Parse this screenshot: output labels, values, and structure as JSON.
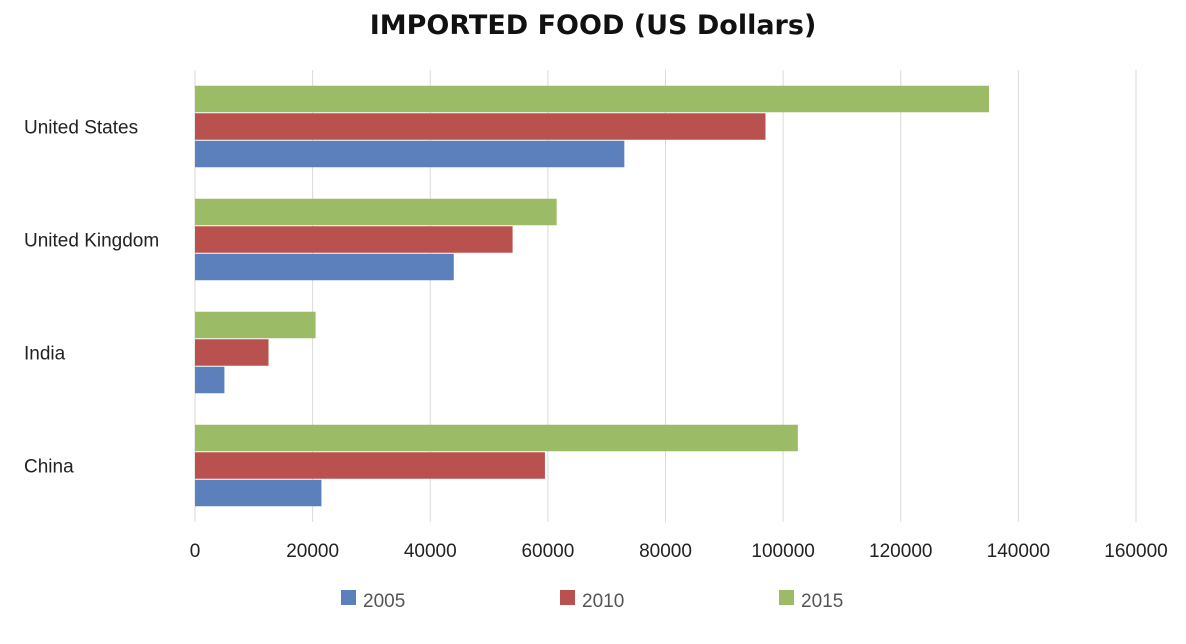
{
  "chart_data": {
    "type": "bar",
    "orientation": "horizontal",
    "title": "IMPORTED FOOD (US Dollars)",
    "categories": [
      "United States",
      "United Kingdom",
      "India",
      "China"
    ],
    "series": [
      {
        "name": "2005",
        "color": "#5b80bb",
        "values": [
          73000,
          44000,
          5000,
          21500
        ]
      },
      {
        "name": "2010",
        "color": "#b9524f",
        "values": [
          97000,
          54000,
          12500,
          59500
        ]
      },
      {
        "name": "2015",
        "color": "#9cbb67",
        "values": [
          135000,
          61500,
          20500,
          102500
        ]
      }
    ],
    "xlim": [
      0,
      160000
    ],
    "xticks": [
      "0",
      "20000",
      "40000",
      "60000",
      "80000",
      "100000",
      "120000",
      "140000",
      "160000"
    ],
    "grid": true,
    "legend_position": "bottom"
  }
}
